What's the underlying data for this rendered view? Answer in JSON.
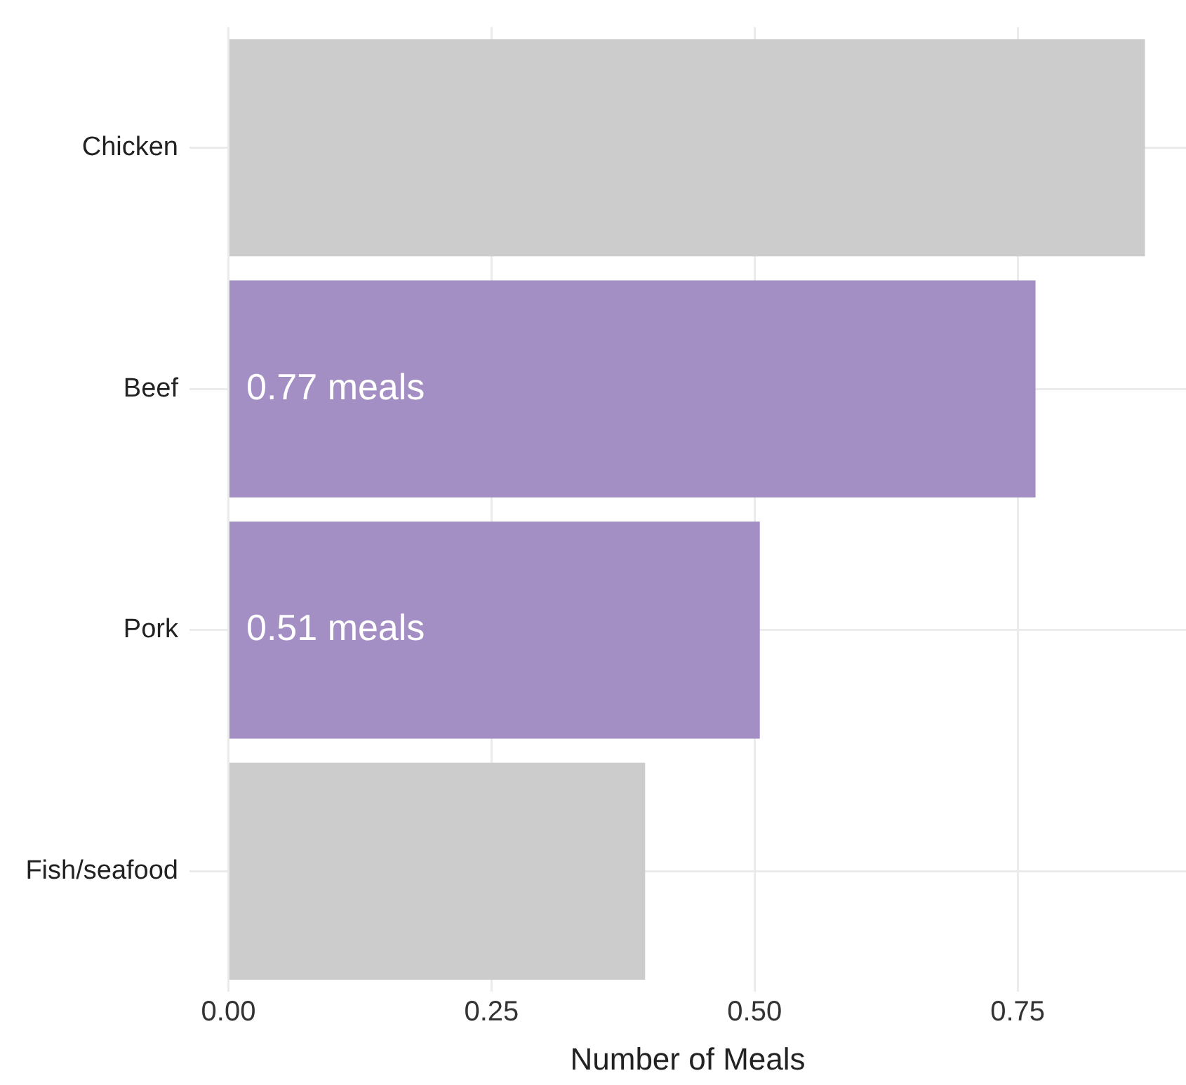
{
  "chart_data": {
    "type": "bar",
    "orientation": "horizontal",
    "xlabel": "Number of Meals",
    "categories": [
      "Chicken",
      "Beef",
      "Pork",
      "Fish/seafood"
    ],
    "values": [
      0.871,
      0.767,
      0.505,
      0.396
    ],
    "colors": [
      "#cccccc",
      "#a38fc4",
      "#a38fc4",
      "#cccccc"
    ],
    "value_labels": [
      null,
      "0.77 meals",
      "0.51 meals",
      null
    ],
    "xlim": [
      -0.037,
      0.91
    ],
    "xticks": [
      {
        "value": 0,
        "label": "0.00"
      },
      {
        "value": 0.25,
        "label": "0.25"
      },
      {
        "value": 0.5,
        "label": "0.50"
      },
      {
        "value": 0.75,
        "label": "0.75"
      }
    ],
    "grid": true,
    "legend": false
  }
}
